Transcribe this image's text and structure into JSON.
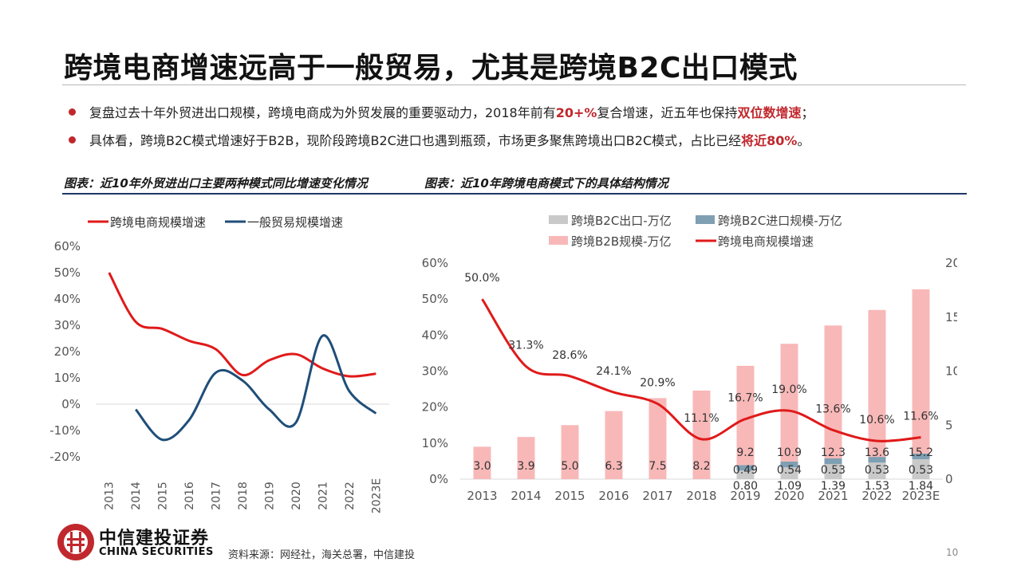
{
  "slide": {
    "title": "跨境电商增速远高于一般贸易，尤其是跨境B2C出口模式",
    "bullets": [
      {
        "pre": "复盘过去十年外贸进出口规模，跨境电商成为外贸发展的重要驱动力，2018年前有",
        "hl1": "20+%",
        "mid": "复合增速，近五年也保持",
        "hl2": "双位数增速",
        "post": "；"
      },
      {
        "pre": "具体看，跨境B2C模式增速好于B2B，现阶段跨境B2C进口也遇到瓶颈，市场更多聚焦跨境出口B2C模式，占比已经",
        "hl1": "将近80%",
        "post": "。"
      }
    ],
    "caption_left": "图表：近10年外贸进出口主要两种模式同比增速变化情况",
    "caption_right": "图表：近10年跨境电商模式下的具体结构情况",
    "source": "资料来源：网经社，海关总署，中信建投",
    "page_number": "10",
    "logo_cn": "中信建投证券",
    "logo_en": "CHINA SECURITIES",
    "colors": {
      "accent_red": "#c0282d",
      "navy_rule": "#1f3864"
    }
  },
  "chart_data": [
    {
      "type": "line",
      "categories": [
        "2013",
        "2014",
        "2015",
        "2016",
        "2017",
        "2018",
        "2019",
        "2020",
        "2021",
        "2022",
        "2023E"
      ],
      "y_ticks": [
        "60%",
        "50%",
        "40%",
        "30%",
        "20%",
        "10%",
        "0%",
        "-10%",
        "-20%"
      ],
      "ylim": [
        -20,
        60
      ],
      "legend_position": "top",
      "series": [
        {
          "name": "跨境电商规模增速",
          "color": "#e01a1a",
          "values": [
            50.0,
            31.3,
            28.6,
            24.1,
            20.9,
            11.1,
            16.7,
            19.0,
            13.6,
            10.6,
            11.6
          ]
        },
        {
          "name": "一般贸易规模增速",
          "color": "#1f4e79",
          "values": [
            null,
            -2,
            -13.5,
            -6,
            12,
            9,
            -2,
            -7,
            26,
            5,
            -3.5
          ]
        }
      ]
    },
    {
      "type": "bar",
      "categories": [
        "2013",
        "2014",
        "2015",
        "2016",
        "2017",
        "2018",
        "2019",
        "2020",
        "2021",
        "2022",
        "2023E"
      ],
      "left_y_ticks": [
        "60%",
        "50%",
        "40%",
        "30%",
        "20%",
        "10%",
        "0%"
      ],
      "right_y_ticks": [
        "20",
        "15",
        "10",
        "5",
        "0"
      ],
      "ylim_left": [
        0,
        60
      ],
      "ylim_right": [
        0,
        20
      ],
      "legend_position": "top",
      "series": [
        {
          "name": "跨境B2C出口-万亿",
          "color": "#c9c9c9",
          "values": [
            null,
            null,
            null,
            null,
            null,
            null,
            0.8,
            1.09,
            1.39,
            1.53,
            1.84
          ],
          "labels": [
            "",
            "",
            "",
            "",
            "",
            "",
            "0.80",
            "1.09",
            "1.39",
            "1.53",
            "1.84"
          ]
        },
        {
          "name": "跨境B2C进口规模-万亿",
          "color": "#7f9fb3",
          "values": [
            null,
            null,
            null,
            null,
            null,
            null,
            0.49,
            0.54,
            0.53,
            0.53,
            0.53
          ],
          "labels": [
            "",
            "",
            "",
            "",
            "",
            "",
            "0.49",
            "0.54",
            "0.53",
            "0.53",
            "0.53"
          ]
        },
        {
          "name": "跨境B2B规模-万亿",
          "color": "#f8b8b8",
          "values": [
            3.0,
            3.9,
            5.0,
            6.3,
            7.5,
            8.2,
            9.2,
            10.9,
            12.3,
            13.6,
            15.2
          ],
          "labels": [
            "3.0",
            "3.9",
            "5.0",
            "6.3",
            "7.5",
            "8.2",
            "9.2",
            "10.9",
            "12.3",
            "13.6",
            "15.2"
          ]
        },
        {
          "name": "跨境电商规模增速",
          "color": "#e01a1a",
          "values": [
            50.0,
            31.3,
            28.6,
            24.1,
            20.9,
            11.1,
            16.7,
            19.0,
            13.6,
            10.6,
            11.6
          ],
          "labels": [
            "50.0%",
            "31.3%",
            "28.6%",
            "24.1%",
            "20.9%",
            "11.1%",
            "16.7%",
            "19.0%",
            "13.6%",
            "10.6%",
            "11.6%"
          ]
        }
      ]
    }
  ]
}
